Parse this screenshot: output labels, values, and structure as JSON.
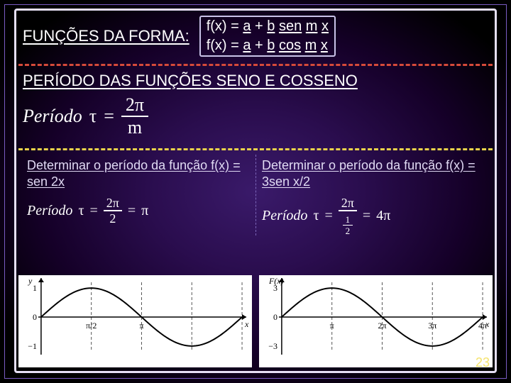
{
  "colors": {
    "dash_red": "#d54a3a",
    "dash_yellow": "#e8d24a",
    "text_white": "#ffffff",
    "plot_bg": "#ffffff",
    "axis": "#000000",
    "curve": "#000000",
    "tick_dash": "#555555"
  },
  "header": {
    "label": "FUNÇÕES DA FORMA:",
    "eq1_prefix": "f(x) = ",
    "eq1_a": "a",
    "eq1_plus": " + ",
    "eq1_b": "b",
    "eq1_sp1": " ",
    "eq1_fn": "sen",
    "eq1_sp2": " ",
    "eq1_m": "m",
    "eq1_sp3": " ",
    "eq1_x": "x",
    "eq2_prefix": "f(x) = ",
    "eq2_a": "a",
    "eq2_plus": " + ",
    "eq2_b": "b",
    "eq2_sp1": " ",
    "eq2_fn": "cos",
    "eq2_sp2": " ",
    "eq2_m": "m",
    "eq2_sp3": " ",
    "eq2_x": "x"
  },
  "section_title": "PERÍODO DAS FUNÇÕES SENO E COSSENO",
  "period_formula": {
    "word": "Período",
    "tau": "τ",
    "eq": "=",
    "num": "2π",
    "den": "m"
  },
  "left": {
    "title": "Determinar o período da função f(x) = sen 2x",
    "word": "Período",
    "tau": "τ",
    "eq": "=",
    "num": "2π",
    "den": "2",
    "eq2": "=",
    "result": "π"
  },
  "right": {
    "title": "Determinar o período da função f(x) = 3sen x/2",
    "word": "Período",
    "tau": "τ",
    "eq": "=",
    "num": "2π",
    "den_num": "1",
    "den_den": "2",
    "eq2": "=",
    "result": "4π"
  },
  "plot_left": {
    "xaxis_label": "x",
    "yaxis_label": "y",
    "y_top": "1",
    "y_bot": "−1",
    "tick1": "π/2",
    "tick2": "π",
    "chart": {
      "type": "line",
      "function": "sin(2x)",
      "xlim": [
        0,
        3.1416
      ],
      "ylim": [
        -1.2,
        1.2
      ],
      "period": 3.1416,
      "amplitude": 1,
      "samples": 100,
      "line_width": 2,
      "line_color": "#000000",
      "background_color": "#ffffff",
      "axis_color": "#000000",
      "vticks": [
        0.7854,
        1.5708,
        2.3562,
        3.1416
      ],
      "vtick_dash": "4 3",
      "vtick_color": "#555555"
    }
  },
  "plot_right": {
    "xaxis_label": "x",
    "yaxis_label": "F(x)",
    "y_top": "3",
    "y_bot": "−3",
    "tick1": "π",
    "tick2": "2π",
    "tick3": "3π",
    "tick4": "4π",
    "chart": {
      "type": "line",
      "function": "3*sin(x/2)",
      "xlim": [
        0,
        12.5664
      ],
      "ylim": [
        -3.6,
        3.6
      ],
      "period": 12.5664,
      "amplitude": 3,
      "samples": 100,
      "line_width": 2,
      "line_color": "#000000",
      "background_color": "#ffffff",
      "axis_color": "#000000",
      "vticks": [
        3.1416,
        6.2832,
        9.4248,
        12.5664
      ],
      "vtick_dash": "4 3",
      "vtick_color": "#555555"
    }
  },
  "page_number": "23"
}
